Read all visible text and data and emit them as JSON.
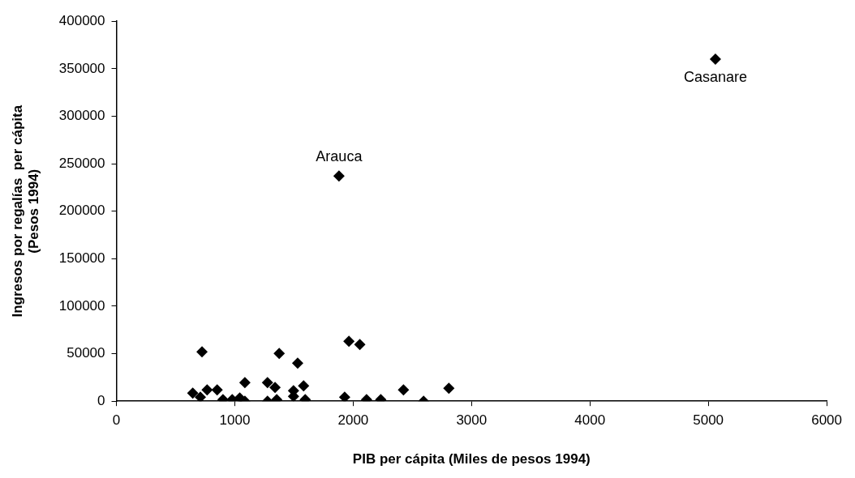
{
  "chart_data": {
    "type": "scatter",
    "xlabel": "PIB per cápita (Miles de pesos 1994)",
    "ylabel": "Ingresos por regalías  per cápita\n(Pesos 1994)",
    "x": [
      645,
      709,
      723,
      766,
      851,
      900,
      978,
      1042,
      1085,
      1085,
      1276,
      1340,
      1276,
      1354,
      1375,
      1496,
      1496,
      1531,
      1581,
      1595,
      1928,
      1964,
      2056,
      2113,
      2233,
      2425,
      2595,
      2808,
      1880,
      5060
    ],
    "values": [
      8500,
      4300,
      52000,
      12000,
      12000,
      1700,
      1700,
      3400,
      19600,
      0,
      19600,
      14500,
      0,
      1700,
      50300,
      11000,
      5100,
      40100,
      16200,
      1700,
      4300,
      63000,
      59700,
      1700,
      1700,
      11900,
      0,
      13600,
      237000,
      360000
    ],
    "color": "#000000",
    "marker": "diamond",
    "xlim": [
      0,
      6000
    ],
    "xticks": [
      0,
      1000,
      2000,
      3000,
      4000,
      5000,
      6000
    ],
    "ylim": [
      0,
      400000
    ],
    "yticks": [
      0,
      50000,
      100000,
      150000,
      200000,
      250000,
      300000,
      350000,
      400000
    ],
    "grid": false,
    "legend": false,
    "annotations": [
      {
        "text": "Arauca",
        "x": 1880,
        "y": 237000
      },
      {
        "text": "Casanare",
        "x": 5060,
        "y": 360000
      }
    ]
  }
}
